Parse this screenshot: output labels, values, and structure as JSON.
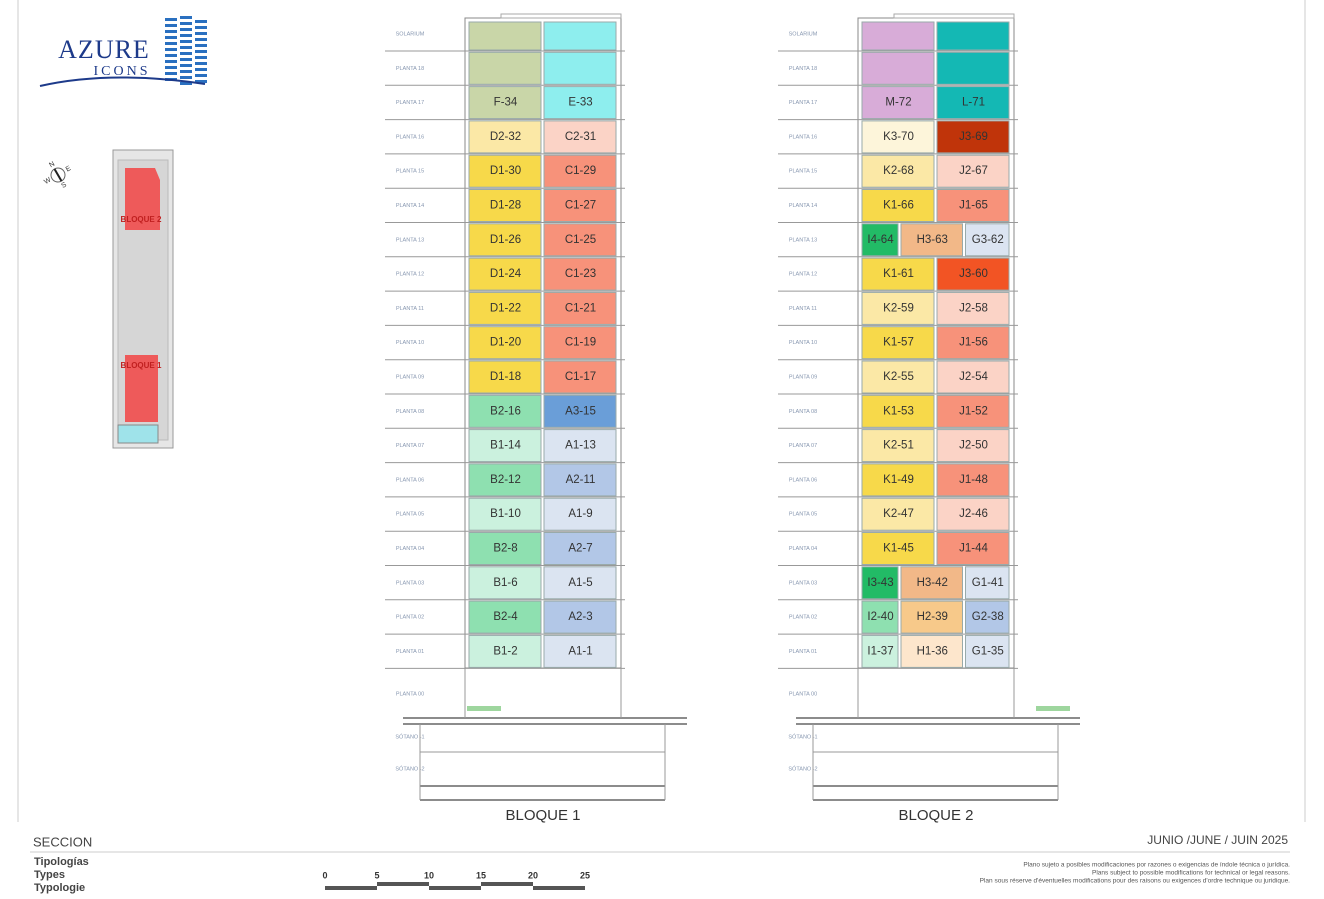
{
  "logo": {
    "name": "AZURE",
    "sub": "ICONS"
  },
  "site_plan": {
    "block_a": "BLOQUE 2",
    "block_b": "BLOQUE 1",
    "compass": [
      "N",
      "E",
      "S",
      "W"
    ]
  },
  "blocks": [
    {
      "title": "BLOQUE 1",
      "floors": [
        {
          "label": "SOLARIUM",
          "units": [
            {
              "color": "#c9d6a8"
            },
            {
              "color": "#8eeeee"
            }
          ]
        },
        {
          "label": "PLANTA 18",
          "units": [
            {
              "color": "#c9d6a8"
            },
            {
              "color": "#8eeeee"
            }
          ]
        },
        {
          "label": "PLANTA 17",
          "units": [
            {
              "label": "F-34",
              "color": "#c9d6a8"
            },
            {
              "label": "E-33",
              "color": "#8eeeee"
            }
          ]
        },
        {
          "label": "PLANTA 16",
          "units": [
            {
              "label": "D2-32",
              "color": "#fbe8a6"
            },
            {
              "label": "C2-31",
              "color": "#fbd3c6"
            }
          ]
        },
        {
          "label": "PLANTA 15",
          "units": [
            {
              "label": "D1-30",
              "color": "#f7d94a"
            },
            {
              "label": "C1-29",
              "color": "#f7927a"
            }
          ]
        },
        {
          "label": "PLANTA 14",
          "units": [
            {
              "label": "D1-28",
              "color": "#f7d94a"
            },
            {
              "label": "C1-27",
              "color": "#f7927a"
            }
          ]
        },
        {
          "label": "PLANTA 13",
          "units": [
            {
              "label": "D1-26",
              "color": "#f7d94a"
            },
            {
              "label": "C1-25",
              "color": "#f7927a"
            }
          ]
        },
        {
          "label": "PLANTA 12",
          "units": [
            {
              "label": "D1-24",
              "color": "#f7d94a"
            },
            {
              "label": "C1-23",
              "color": "#f7927a"
            }
          ]
        },
        {
          "label": "PLANTA 11",
          "units": [
            {
              "label": "D1-22",
              "color": "#f7d94a"
            },
            {
              "label": "C1-21",
              "color": "#f7927a"
            }
          ]
        },
        {
          "label": "PLANTA 10",
          "units": [
            {
              "label": "D1-20",
              "color": "#f7d94a"
            },
            {
              "label": "C1-19",
              "color": "#f7927a"
            }
          ]
        },
        {
          "label": "PLANTA 09",
          "units": [
            {
              "label": "D1-18",
              "color": "#f7d94a"
            },
            {
              "label": "C1-17",
              "color": "#f7927a"
            }
          ]
        },
        {
          "label": "PLANTA 08",
          "units": [
            {
              "label": "B2-16",
              "color": "#8ee0b0"
            },
            {
              "label": "A3-15",
              "color": "#6a9ed8"
            }
          ]
        },
        {
          "label": "PLANTA 07",
          "units": [
            {
              "label": "B1-14",
              "color": "#cbf1de"
            },
            {
              "label": "A1-13",
              "color": "#dbe4f1"
            }
          ]
        },
        {
          "label": "PLANTA 06",
          "units": [
            {
              "label": "B2-12",
              "color": "#8ee0b0"
            },
            {
              "label": "A2-11",
              "color": "#b2c7e7"
            }
          ]
        },
        {
          "label": "PLANTA 05",
          "units": [
            {
              "label": "B1-10",
              "color": "#cbf1de"
            },
            {
              "label": "A1-9",
              "color": "#dbe4f1"
            }
          ]
        },
        {
          "label": "PLANTA 04",
          "units": [
            {
              "label": "B2-8",
              "color": "#8ee0b0"
            },
            {
              "label": "A2-7",
              "color": "#b2c7e7"
            }
          ]
        },
        {
          "label": "PLANTA 03",
          "units": [
            {
              "label": "B1-6",
              "color": "#cbf1de"
            },
            {
              "label": "A1-5",
              "color": "#dbe4f1"
            }
          ]
        },
        {
          "label": "PLANTA 02",
          "units": [
            {
              "label": "B2-4",
              "color": "#8ee0b0"
            },
            {
              "label": "A2-3",
              "color": "#b2c7e7"
            }
          ]
        },
        {
          "label": "PLANTA 01",
          "units": [
            {
              "label": "B1-2",
              "color": "#cbf1de"
            },
            {
              "label": "A1-1",
              "color": "#dbe4f1"
            }
          ]
        },
        {
          "label": "PLANTA 00"
        },
        {
          "label": "SÓTANO -1"
        },
        {
          "label": "SÓTANO -2"
        }
      ]
    },
    {
      "title": "BLOQUE 2",
      "floors": [
        {
          "label": "SOLARIUM",
          "units": [
            {
              "color": "#d8acd8"
            },
            {
              "color": "#14b8b4"
            }
          ]
        },
        {
          "label": "PLANTA 18",
          "units": [
            {
              "color": "#d8acd8"
            },
            {
              "color": "#14b8b4"
            }
          ]
        },
        {
          "label": "PLANTA 17",
          "units": [
            {
              "label": "M-72",
              "color": "#d8acd8"
            },
            {
              "label": "L-71",
              "color": "#14b8b4"
            }
          ]
        },
        {
          "label": "PLANTA 16",
          "units": [
            {
              "label": "K3-70",
              "color": "#fdf5da"
            },
            {
              "label": "J3-69",
              "color": "#c0340a"
            }
          ]
        },
        {
          "label": "PLANTA 15",
          "units": [
            {
              "label": "K2-68",
              "color": "#fbe8a6"
            },
            {
              "label": "J2-67",
              "color": "#fbd3c6"
            }
          ]
        },
        {
          "label": "PLANTA 14",
          "units": [
            {
              "label": "K1-66",
              "color": "#f7d94a"
            },
            {
              "label": "J1-65",
              "color": "#f7927a"
            }
          ]
        },
        {
          "label": "PLANTA 13",
          "units": [
            {
              "label": "I4-64",
              "color": "#22bb66"
            },
            {
              "label": "H3-63",
              "color": "#f2b888"
            },
            {
              "label": "G3-62",
              "color": "#dbe4f1"
            }
          ]
        },
        {
          "label": "PLANTA 12",
          "units": [
            {
              "label": "K1-61",
              "color": "#f7d94a"
            },
            {
              "label": "J3-60",
              "color": "#f25424"
            }
          ]
        },
        {
          "label": "PLANTA 11",
          "units": [
            {
              "label": "K2-59",
              "color": "#fbe8a6"
            },
            {
              "label": "J2-58",
              "color": "#fbd3c6"
            }
          ]
        },
        {
          "label": "PLANTA 10",
          "units": [
            {
              "label": "K1-57",
              "color": "#f7d94a"
            },
            {
              "label": "J1-56",
              "color": "#f7927a"
            }
          ]
        },
        {
          "label": "PLANTA 09",
          "units": [
            {
              "label": "K2-55",
              "color": "#fbe8a6"
            },
            {
              "label": "J2-54",
              "color": "#fbd3c6"
            }
          ]
        },
        {
          "label": "PLANTA 08",
          "units": [
            {
              "label": "K1-53",
              "color": "#f7d94a"
            },
            {
              "label": "J1-52",
              "color": "#f7927a"
            }
          ]
        },
        {
          "label": "PLANTA 07",
          "units": [
            {
              "label": "K2-51",
              "color": "#fbe8a6"
            },
            {
              "label": "J2-50",
              "color": "#fbd3c6"
            }
          ]
        },
        {
          "label": "PLANTA 06",
          "units": [
            {
              "label": "K1-49",
              "color": "#f7d94a"
            },
            {
              "label": "J1-48",
              "color": "#f7927a"
            }
          ]
        },
        {
          "label": "PLANTA 05",
          "units": [
            {
              "label": "K2-47",
              "color": "#fbe8a6"
            },
            {
              "label": "J2-46",
              "color": "#fbd3c6"
            }
          ]
        },
        {
          "label": "PLANTA 04",
          "units": [
            {
              "label": "K1-45",
              "color": "#f7d94a"
            },
            {
              "label": "J1-44",
              "color": "#f7927a"
            }
          ]
        },
        {
          "label": "PLANTA 03",
          "units": [
            {
              "label": "I3-43",
              "color": "#22bb66"
            },
            {
              "label": "H3-42",
              "color": "#f2b888"
            },
            {
              "label": "G1-41",
              "color": "#dbe4f1"
            }
          ]
        },
        {
          "label": "PLANTA 02",
          "units": [
            {
              "label": "I2-40",
              "color": "#8ee0b0"
            },
            {
              "label": "H2-39",
              "color": "#f7c98a"
            },
            {
              "label": "G2-38",
              "color": "#b2c7e7"
            }
          ]
        },
        {
          "label": "PLANTA 01",
          "units": [
            {
              "label": "I1-37",
              "color": "#cbf1de"
            },
            {
              "label": "H1-36",
              "color": "#fde6cc"
            },
            {
              "label": "G1-35",
              "color": "#dbe4f1"
            }
          ]
        },
        {
          "label": "PLANTA 00"
        },
        {
          "label": "SÓTANO -1"
        },
        {
          "label": "SÓTANO -2"
        }
      ]
    }
  ],
  "footer": {
    "section": "SECCION",
    "typologies": [
      "Tipologías",
      "Types",
      "Typologie"
    ],
    "scale": [
      "0",
      "5",
      "10",
      "15",
      "20",
      "25"
    ],
    "date": "JUNIO /JUNE / JUIN  2025",
    "disclaimer": [
      "Plano sujeto a posibles modificaciones por razones o exigencias de índole técnica o jurídica.",
      "Plans subject to possible modifications for technical or legal reasons.",
      "Plan sous réserve d'éventuelles modifications pour des raisons ou exigences d'ordre technique ou juridique."
    ]
  }
}
